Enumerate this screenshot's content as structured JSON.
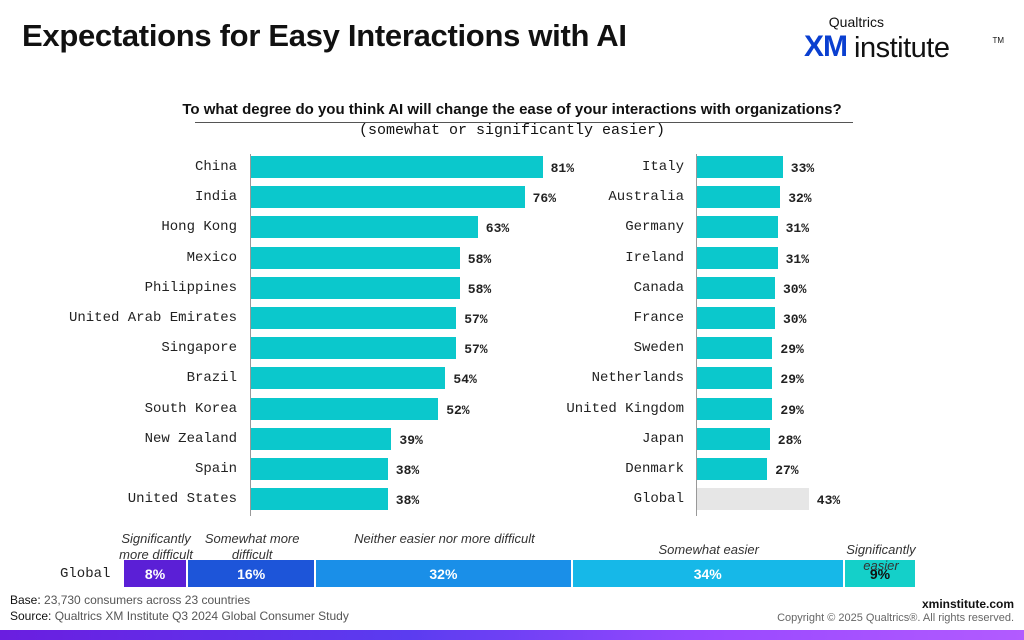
{
  "page": {
    "title": "Expectations for Easy Interactions with AI",
    "logo": {
      "brand": "Qualtrics",
      "xm": "XM",
      "institute": "institute",
      "tm": "TM"
    },
    "question": "To what degree do you think AI will change the ease of your interactions with organizations?",
    "subtitle": "(somewhat or significantly easier)",
    "footer": {
      "base_label": "Base:",
      "base_text": "23,730 consumers across 23 countries",
      "source_label": "Source:",
      "source_text": "Qualtrics XM Institute Q3 2024 Global Consumer Study",
      "site": "xminstitute.com",
      "copyright": "Copyright © 2025 Qualtrics®. All rights reserved."
    }
  },
  "chart_data": [
    {
      "type": "bar",
      "orientation": "horizontal",
      "unit": "%",
      "xlim": [
        0,
        100
      ],
      "categories": [
        "China",
        "India",
        "Hong Kong",
        "Mexico",
        "Philippines",
        "United Arab Emirates",
        "Singapore",
        "Brazil",
        "South Korea",
        "New Zealand",
        "Spain",
        "United States"
      ],
      "values": [
        81,
        76,
        63,
        58,
        58,
        57,
        57,
        54,
        52,
        39,
        38,
        38
      ]
    },
    {
      "type": "bar",
      "orientation": "horizontal",
      "unit": "%",
      "xlim": [
        0,
        100
      ],
      "categories": [
        "Italy",
        "Australia",
        "Germany",
        "Ireland",
        "Canada",
        "France",
        "Sweden",
        "Netherlands",
        "United Kingdom",
        "Japan",
        "Denmark",
        "Global"
      ],
      "values": [
        33,
        32,
        31,
        31,
        30,
        30,
        29,
        29,
        29,
        28,
        27,
        43
      ],
      "highlight": [
        "Global"
      ]
    },
    {
      "type": "bar",
      "orientation": "horizontal",
      "stacked": true,
      "unit": "%",
      "category": "Global",
      "segments": [
        {
          "name": "Significantly more difficult",
          "value": 8,
          "color": "#5b1fd6"
        },
        {
          "name": "Somewhat more difficult",
          "value": 16,
          "color": "#1d55d9"
        },
        {
          "name": "Neither easier nor more difficult",
          "value": 32,
          "color": "#1a8fe8"
        },
        {
          "name": "Somewhat easier",
          "value": 34,
          "color": "#16b8e8"
        },
        {
          "name": "Significantly easier",
          "value": 9,
          "color": "#14d0c9"
        }
      ]
    }
  ]
}
